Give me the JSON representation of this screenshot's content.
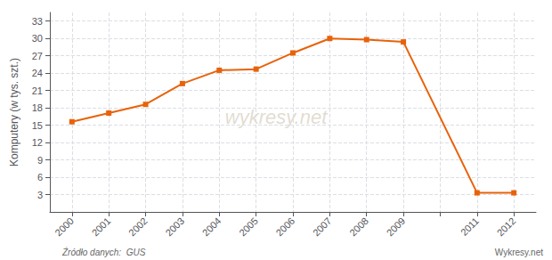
{
  "chart_data": {
    "type": "line",
    "x": [
      2000,
      2001,
      2002,
      2003,
      2004,
      2005,
      2006,
      2007,
      2008,
      2009,
      2011,
      2012
    ],
    "values": [
      15.6,
      17.1,
      18.6,
      22.2,
      24.5,
      24.7,
      27.5,
      30.0,
      29.8,
      29.4,
      3.3,
      3.3
    ],
    "color": "#e8620a",
    "marker": "square",
    "ylabel": "Komputery (w tys. szt.)",
    "annotations": [
      "wykresy.net",
      "Źródło danych:  GUS",
      "Wykresy.net"
    ],
    "xlim": [
      1999.4,
      2012.6
    ],
    "xticks": [
      2000,
      2001,
      2002,
      2003,
      2004,
      2005,
      2006,
      2007,
      2008,
      2009,
      {
        "value": 2010,
        "label": null
      },
      2011,
      2012
    ],
    "ylim": [
      0,
      34.5
    ],
    "yticks": [
      3,
      6,
      9,
      12,
      15,
      18,
      21,
      24,
      27,
      30,
      33
    ],
    "grid": true
  }
}
